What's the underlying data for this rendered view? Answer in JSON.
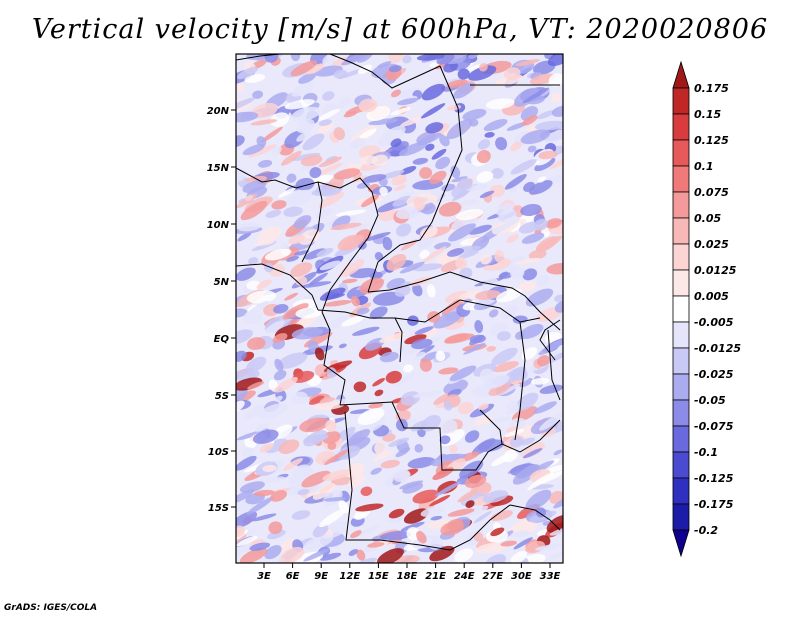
{
  "title": "Vertical velocity [m/s] at 600hPa, VT: 2020020806",
  "credit": "GrADS: IGES/COLA",
  "map": {
    "lat_labels": [
      "20N",
      "15N",
      "10N",
      "5N",
      "EQ",
      "5S",
      "10S",
      "15S"
    ],
    "lon_labels": [
      "3E",
      "6E",
      "9E",
      "12E",
      "15E",
      "18E",
      "21E",
      "24E",
      "27E",
      "30E",
      "33E"
    ]
  },
  "colorbar": {
    "levels": [
      "0.175",
      "0.15",
      "0.125",
      "0.1",
      "0.075",
      "0.05",
      "0.025",
      "0.0125",
      "0.005",
      "-0.005",
      "-0.0125",
      "-0.025",
      "-0.05",
      "-0.075",
      "-0.1",
      "-0.125",
      "-0.175",
      "-0.2"
    ],
    "colors": [
      "#a01818",
      "#c02828",
      "#d83c3c",
      "#e85a5a",
      "#f07a7a",
      "#f59a9a",
      "#f8b8b8",
      "#fbd4d4",
      "#fde8e8",
      "#ffffff",
      "#e4e4fb",
      "#c9c9f6",
      "#ababf0",
      "#8c8ce8",
      "#6a6ade",
      "#4b4bd2",
      "#3030c0",
      "#1c1ca8",
      "#100090"
    ]
  }
}
